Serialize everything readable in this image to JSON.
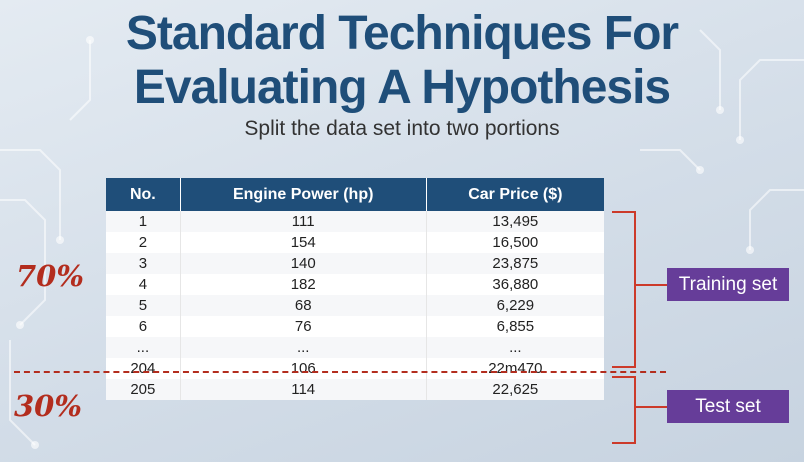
{
  "title_line1": "Standard Techniques For",
  "title_line2": "Evaluating A Hypothesis",
  "subtitle": "Split the data set into two portions",
  "table": {
    "headers": [
      "No.",
      "Engine Power (hp)",
      "Car Price ($)"
    ],
    "rows": [
      [
        "1",
        "111",
        "13,495"
      ],
      [
        "2",
        "154",
        "16,500"
      ],
      [
        "3",
        "140",
        "23,875"
      ],
      [
        "4",
        "182",
        "36,880"
      ],
      [
        "5",
        "68",
        "6,229"
      ],
      [
        "6",
        "76",
        "6,855"
      ],
      [
        "...",
        "...",
        "..."
      ],
      [
        "204",
        "106",
        "22m470"
      ],
      [
        "205",
        "114",
        "22,625"
      ]
    ]
  },
  "split": {
    "train_percent": "70%",
    "test_percent": "30%",
    "train_label": "Training set",
    "test_label": "Test set"
  },
  "colors": {
    "title": "#1f4e79",
    "table_header": "#1f4e79",
    "accent_red": "#b32d1e",
    "label_purple": "#663d99"
  }
}
